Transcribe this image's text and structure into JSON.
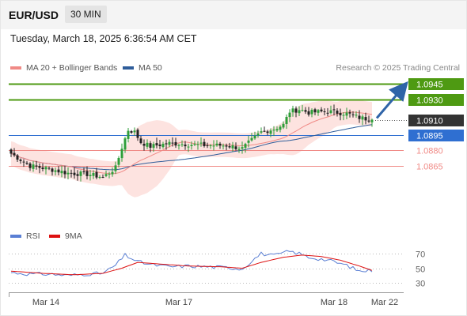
{
  "header": {
    "symbol": "EUR/USD",
    "timeframe": "30 MIN"
  },
  "datetime": "Tuesday, March 18, 2025 6:36:54 AM CET",
  "legend": [
    {
      "label": "MA 20 + Bollinger Bands",
      "color": "#f08a86"
    },
    {
      "label": "MA 50",
      "color": "#2f5d9a"
    }
  ],
  "credit": "Research © 2025 Trading Central",
  "rsi_legend": [
    {
      "label": "RSI",
      "color": "#5a7fd4"
    },
    {
      "label": "9MA",
      "color": "#dd1111"
    }
  ],
  "colors": {
    "up": "#2e9e3a",
    "down": "#222222",
    "resistance": "#4e9a12",
    "support": "#f08a86",
    "pivot": "#2f6fd1",
    "last": "#333333",
    "band_fill": "#fde3e0"
  },
  "chart_data": {
    "type": "candlestick",
    "y_axis_side": "right",
    "ylim": [
      1.084,
      1.0955
    ],
    "levels": [
      {
        "value": 1.0945,
        "label": "1.0945",
        "role": "resistance"
      },
      {
        "value": 1.093,
        "label": "1.0930",
        "role": "resistance"
      },
      {
        "value": 1.091,
        "label": "1.0910",
        "role": "last"
      },
      {
        "value": 1.0895,
        "label": "1.0895",
        "role": "pivot"
      },
      {
        "value": 1.088,
        "label": "1.0880",
        "role": "support"
      },
      {
        "value": 1.0865,
        "label": "1.0865",
        "role": "support"
      }
    ],
    "last_price": 1.091,
    "forecast_target": 1.0945,
    "x_ticks": [
      "Mar 14",
      "Mar 17",
      "Mar 18",
      "Mar 22"
    ],
    "x_tick_bar_index": [
      11,
      53,
      102,
      118
    ],
    "bars_count": 115,
    "anchors_close": [
      [
        0,
        1.0877
      ],
      [
        6,
        1.0865
      ],
      [
        12,
        1.0862
      ],
      [
        18,
        1.0858
      ],
      [
        24,
        1.0857
      ],
      [
        29,
        1.0854
      ],
      [
        33,
        1.0863
      ],
      [
        35,
        1.0883
      ],
      [
        37,
        1.09
      ],
      [
        39,
        1.0898
      ],
      [
        41,
        1.0888
      ],
      [
        44,
        1.0884
      ],
      [
        50,
        1.0887
      ],
      [
        56,
        1.0886
      ],
      [
        62,
        1.0885
      ],
      [
        68,
        1.0885
      ],
      [
        73,
        1.0882
      ],
      [
        76,
        1.089
      ],
      [
        79,
        1.0898
      ],
      [
        83,
        1.0901
      ],
      [
        86,
        1.0905
      ],
      [
        88,
        1.0918
      ],
      [
        91,
        1.092
      ],
      [
        94,
        1.0917
      ],
      [
        100,
        1.0918
      ],
      [
        106,
        1.0916
      ],
      [
        110,
        1.0912
      ],
      [
        114,
        1.091
      ]
    ],
    "rsi": {
      "ylim": [
        20,
        80
      ],
      "ticks": [
        70,
        50,
        30
      ],
      "anchors": [
        [
          0,
          44
        ],
        [
          6,
          42
        ],
        [
          12,
          42
        ],
        [
          18,
          40
        ],
        [
          24,
          42
        ],
        [
          29,
          43
        ],
        [
          33,
          54
        ],
        [
          36,
          68
        ],
        [
          40,
          59
        ],
        [
          44,
          55
        ],
        [
          50,
          52
        ],
        [
          56,
          53
        ],
        [
          62,
          52
        ],
        [
          68,
          51
        ],
        [
          73,
          49
        ],
        [
          76,
          60
        ],
        [
          79,
          70
        ],
        [
          83,
          67
        ],
        [
          86,
          71
        ],
        [
          88,
          73
        ],
        [
          91,
          70
        ],
        [
          94,
          65
        ],
        [
          100,
          61
        ],
        [
          106,
          54
        ],
        [
          110,
          46
        ],
        [
          114,
          47
        ]
      ],
      "ma9_anchors": [
        [
          0,
          46
        ],
        [
          10,
          43
        ],
        [
          20,
          41
        ],
        [
          29,
          43
        ],
        [
          35,
          50
        ],
        [
          40,
          58
        ],
        [
          46,
          56
        ],
        [
          56,
          53
        ],
        [
          66,
          52
        ],
        [
          73,
          50
        ],
        [
          79,
          58
        ],
        [
          86,
          65
        ],
        [
          92,
          68
        ],
        [
          98,
          66
        ],
        [
          104,
          61
        ],
        [
          110,
          53
        ],
        [
          114,
          47
        ]
      ]
    }
  }
}
